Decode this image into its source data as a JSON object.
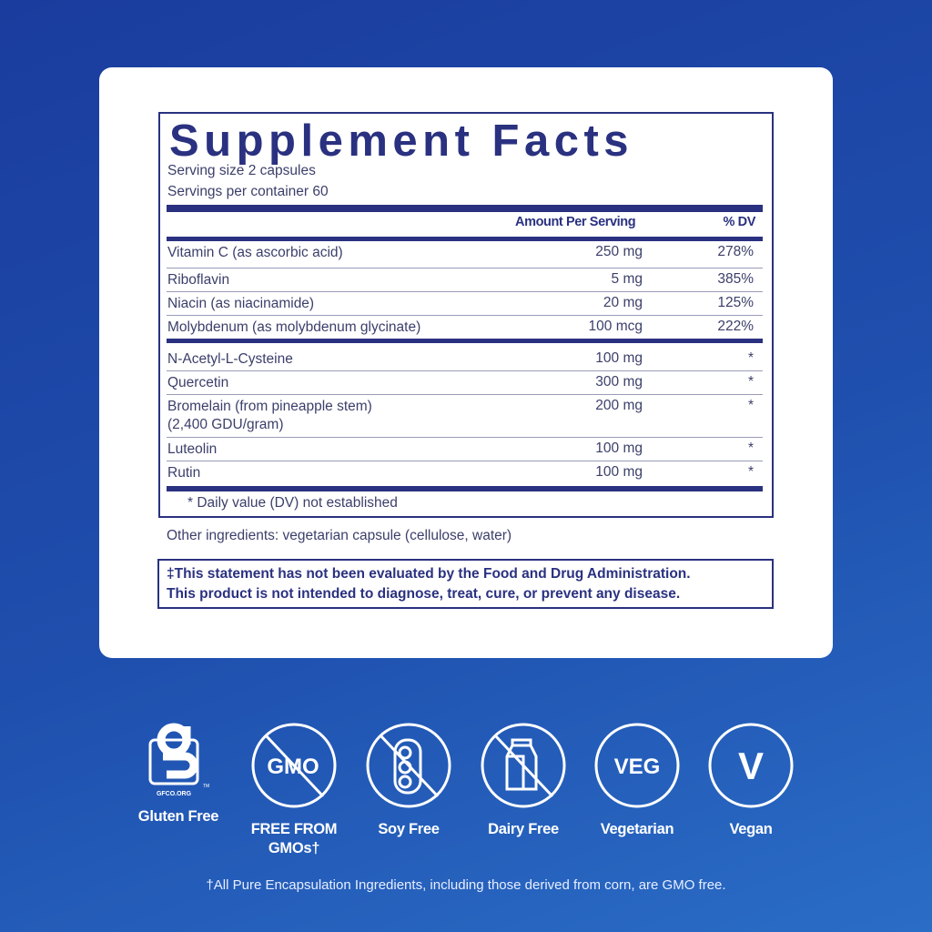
{
  "label": {
    "title": "Supplement Facts",
    "serving_size": "Serving size  2 capsules",
    "servings_per_container": "Servings per container  60",
    "col_amount": "Amount Per Serving",
    "col_dv": "% DV",
    "rows": [
      {
        "name": "Vitamin C (as ascorbic acid)",
        "amount": "250 mg",
        "dv": "278%"
      },
      {
        "name": "Riboflavin",
        "amount": "5 mg",
        "dv": "385%"
      },
      {
        "name": "Niacin (as niacinamide)",
        "amount": "20 mg",
        "dv": "125%"
      },
      {
        "name": "Molybdenum (as molybdenum glycinate)",
        "amount": "100 mcg",
        "dv": "222%"
      },
      {
        "name": "N-Acetyl-L-Cysteine",
        "amount": "100 mg",
        "dv": "*"
      },
      {
        "name": "Quercetin",
        "amount": "300 mg",
        "dv": "*"
      },
      {
        "name": "Bromelain (from pineapple stem)",
        "name2": "(2,400 GDU/gram)",
        "amount": "200 mg",
        "dv": "*"
      },
      {
        "name": "Luteolin",
        "amount": "100 mg",
        "dv": "*"
      },
      {
        "name": "Rutin",
        "amount": "100 mg",
        "dv": "*"
      }
    ],
    "footnote": "* Daily value (DV) not established"
  },
  "other_ingredients": "Other ingredients: vegetarian capsule (cellulose, water)",
  "disclaimer": {
    "line1": "‡This statement has not been evaluated by the Food and Drug Administration.",
    "line2": "This product is not intended to diagnose, treat, cure, or prevent any disease."
  },
  "badges": [
    {
      "icon": "gluten-free-gfco-icon",
      "logo_text": "GFCO.ORG",
      "label": "Gluten Free"
    },
    {
      "icon": "no-gmo-icon",
      "icon_text": "GMO",
      "label": "FREE FROM",
      "label2": "GMOs†"
    },
    {
      "icon": "no-soy-icon",
      "label": "Soy Free"
    },
    {
      "icon": "no-dairy-icon",
      "label": "Dairy Free"
    },
    {
      "icon": "veg-icon",
      "icon_text": "VEG",
      "label": "Vegetarian"
    },
    {
      "icon": "vegan-icon",
      "icon_text": "V",
      "label": "Vegan"
    }
  ],
  "gmo_note": "†All Pure Encapsulation Ingredients, including those derived from corn, are GMO free.",
  "colors": {
    "navy": "#2a3180",
    "background": "#1f4fae"
  }
}
